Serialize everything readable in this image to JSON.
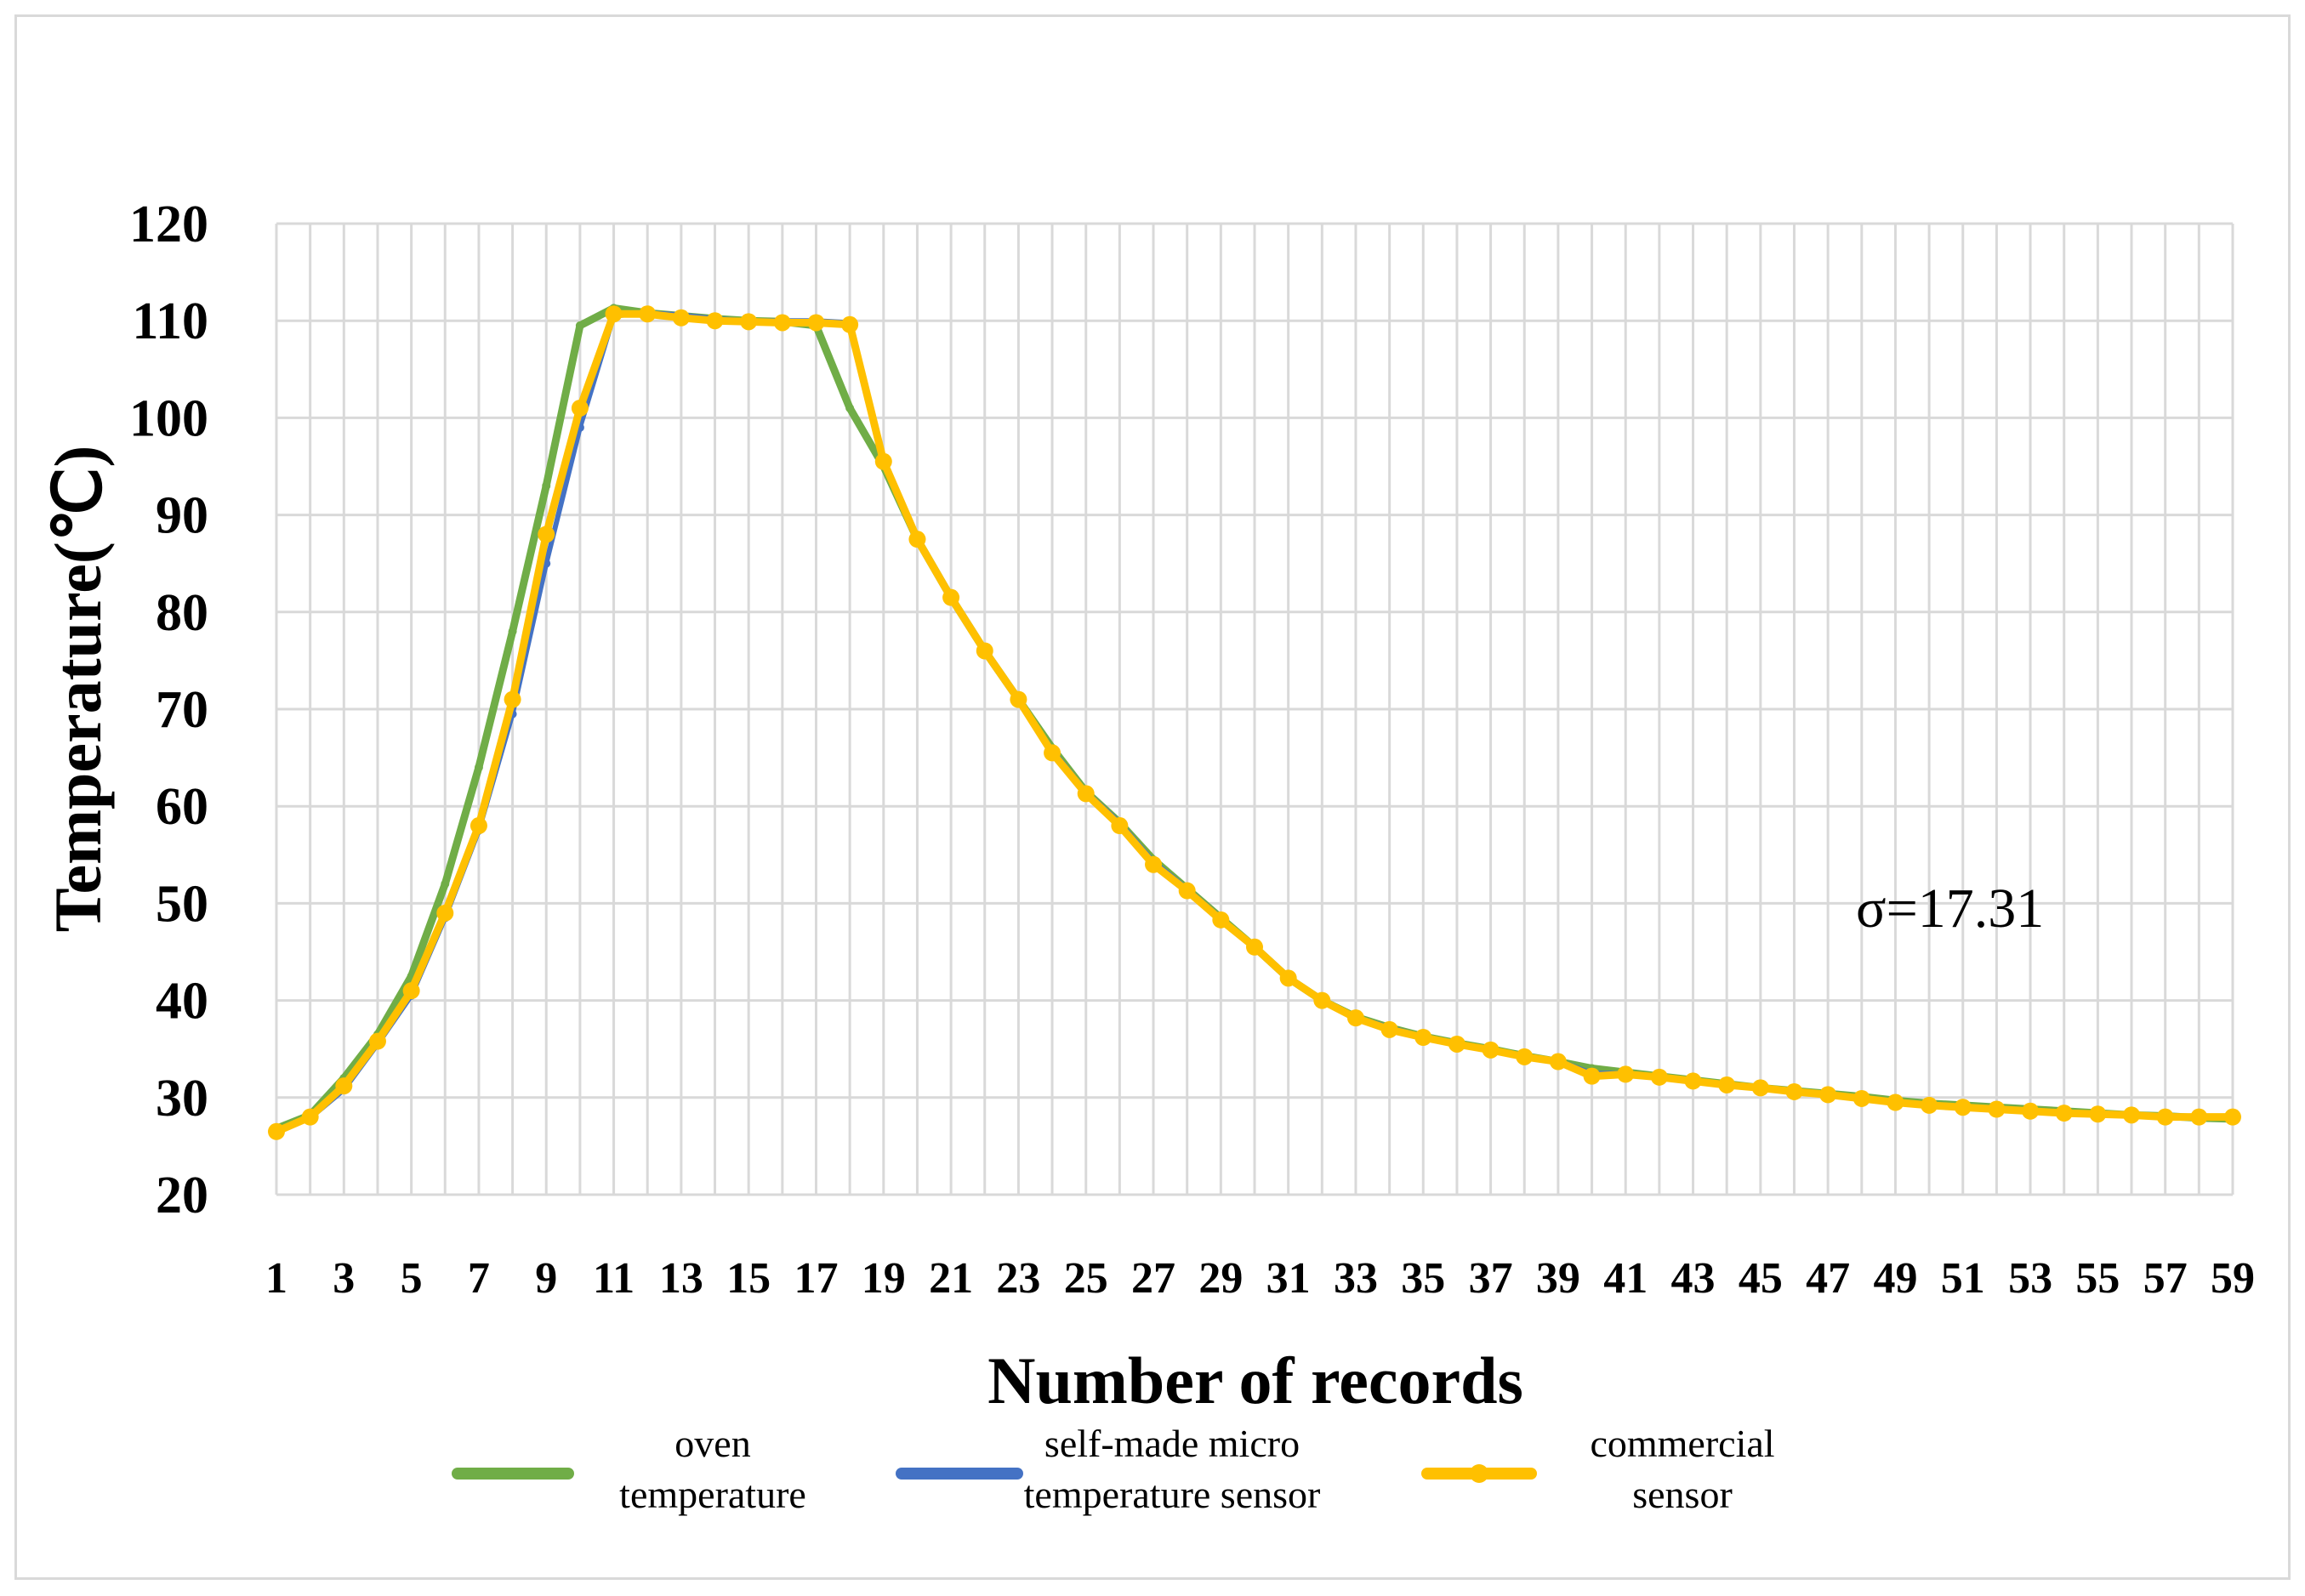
{
  "chart_data": {
    "type": "line",
    "xlabel": "Number of records",
    "ylabel": "Temperature(℃)",
    "ylim": [
      20,
      120
    ],
    "yticks": [
      20,
      30,
      40,
      50,
      60,
      70,
      80,
      90,
      100,
      110,
      120
    ],
    "x": [
      1,
      2,
      3,
      4,
      5,
      6,
      7,
      8,
      9,
      10,
      11,
      12,
      13,
      14,
      15,
      16,
      17,
      18,
      19,
      20,
      21,
      22,
      23,
      24,
      25,
      26,
      27,
      28,
      29,
      30,
      31,
      32,
      33,
      34,
      35,
      36,
      37,
      38,
      39,
      40,
      41,
      42,
      43,
      44,
      45,
      46,
      47,
      48,
      49,
      50,
      51,
      52,
      53,
      54,
      55,
      56,
      57,
      58,
      59
    ],
    "xtick_labels": [
      "1",
      "3",
      "5",
      "7",
      "9",
      "11",
      "13",
      "15",
      "17",
      "19",
      "21",
      "23",
      "25",
      "27",
      "29",
      "31",
      "33",
      "35",
      "37",
      "39",
      "41",
      "43",
      "45",
      "47",
      "49",
      "51",
      "53",
      "55",
      "57",
      "59"
    ],
    "grid": true,
    "legend_position": "bottom",
    "annotation": "σ=17.31",
    "series": [
      {
        "name": "oven\ntemperature",
        "color": "#70ad47",
        "values": [
          26.8,
          28.2,
          32.0,
          36.5,
          42.5,
          52.0,
          64.0,
          78.0,
          93.0,
          109.5,
          111.3,
          110.8,
          110.5,
          110.2,
          110.0,
          109.9,
          109.5,
          101.0,
          95.0,
          87.5,
          81.5,
          76.0,
          71.0,
          66.0,
          61.5,
          58.3,
          54.5,
          51.5,
          48.5,
          45.5,
          42.3,
          40.0,
          38.3,
          37.2,
          36.3,
          35.6,
          35.0,
          34.3,
          33.7,
          33.0,
          32.6,
          32.2,
          31.8,
          31.4,
          31.0,
          30.7,
          30.4,
          30.1,
          29.7,
          29.4,
          29.2,
          29.0,
          28.8,
          28.6,
          28.4,
          28.2,
          28.1,
          27.9,
          27.8
        ]
      },
      {
        "name": "self-made micro\ntemperature sensor",
        "color": "#4472c4",
        "values": [
          26.6,
          27.9,
          30.8,
          35.5,
          40.5,
          48.5,
          57.5,
          69.5,
          85.0,
          99.0,
          110.5,
          110.8,
          110.6,
          110.2,
          110.0,
          110.0,
          110.0,
          109.8,
          95.5,
          87.5,
          81.5,
          76.0,
          71.0,
          65.8,
          61.5,
          58.3,
          54.3,
          51.5,
          48.5,
          45.5,
          42.3,
          40.0,
          38.3,
          37.2,
          36.3,
          35.6,
          35.0,
          34.3,
          33.8,
          32.5,
          32.5,
          32.2,
          31.8,
          31.4,
          31.0,
          30.7,
          30.4,
          30.0,
          29.6,
          29.3,
          29.1,
          28.9,
          28.7,
          28.5,
          28.4,
          28.2,
          28.1,
          28.0,
          28.0
        ]
      },
      {
        "name": "commercial\nsensor",
        "color": "#ffc000",
        "values": [
          26.5,
          28.0,
          31.2,
          35.8,
          41.0,
          49.0,
          58.0,
          71.0,
          88.0,
          101.0,
          110.7,
          110.7,
          110.3,
          110.0,
          109.9,
          109.8,
          109.8,
          109.6,
          95.5,
          87.5,
          81.5,
          76.0,
          71.0,
          65.5,
          61.3,
          58.0,
          54.0,
          51.3,
          48.3,
          45.5,
          42.3,
          40.0,
          38.2,
          37.0,
          36.2,
          35.5,
          34.9,
          34.2,
          33.7,
          32.2,
          32.4,
          32.1,
          31.7,
          31.3,
          31.0,
          30.6,
          30.3,
          29.9,
          29.5,
          29.2,
          29.0,
          28.8,
          28.6,
          28.4,
          28.3,
          28.2,
          28.0,
          28.0,
          28.0
        ]
      }
    ]
  }
}
